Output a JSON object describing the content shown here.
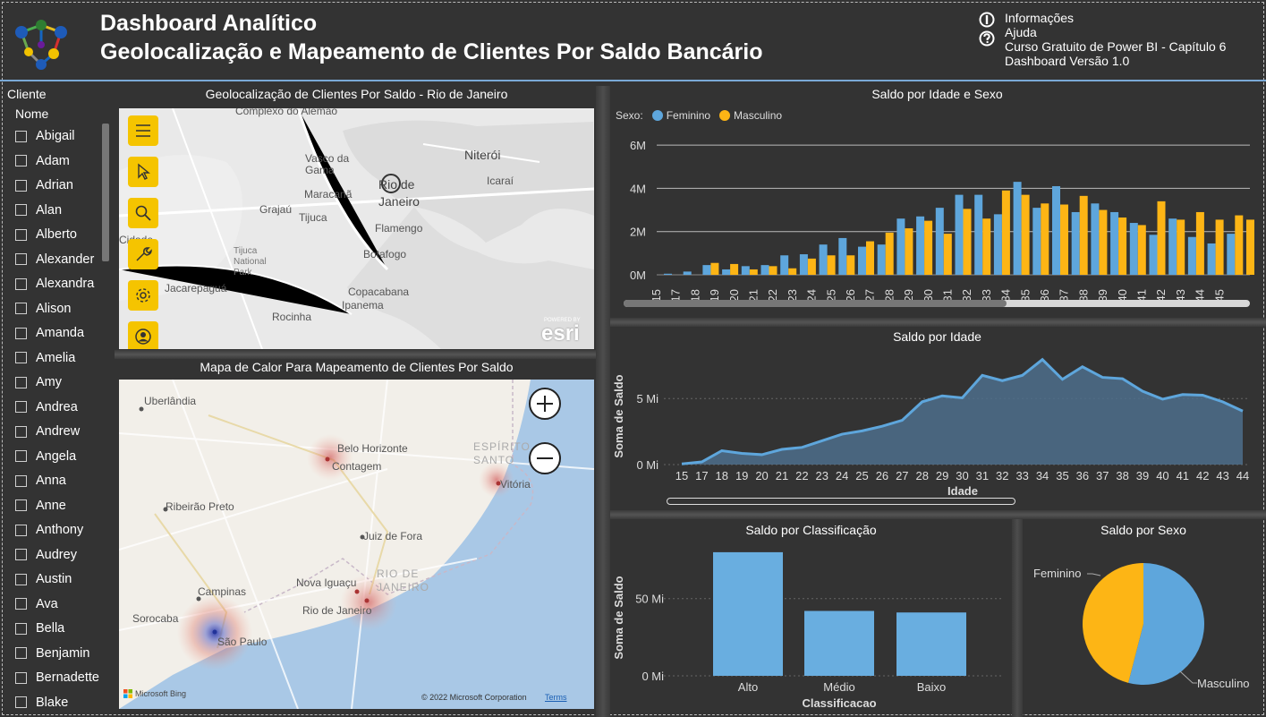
{
  "header": {
    "title_line1": "Dashboard Analítico",
    "title_line2": "Geolocalização e Mapeamento de Clientes Por Saldo Bancário",
    "links": [
      "Informações",
      "Ajuda",
      "Curso Gratuito de Power BI - Capítulo 6",
      "Dashboard Versão 1.0"
    ],
    "logo_icon": "molecule-logo-icon"
  },
  "slicer": {
    "title": "Cliente",
    "field": "Nome",
    "items": [
      "Abigail",
      "Adam",
      "Adrian",
      "Alan",
      "Alberto",
      "Alexander",
      "Alexandra",
      "Alison",
      "Amanda",
      "Amelia",
      "Amy",
      "Andrea",
      "Andrew",
      "Angela",
      "Anna",
      "Anne",
      "Anthony",
      "Audrey",
      "Austin",
      "Ava",
      "Bella",
      "Benjamin",
      "Bernadette",
      "Blake"
    ]
  },
  "map_rio": {
    "title": "Geolocalização de Clientes Por Saldo - Rio de Janeiro",
    "labels": [
      "Complexo do Alemão",
      "Vasco da Gama",
      "Niterói",
      "Icaraí",
      "Rio de Janeiro",
      "Maracanã",
      "Grajaú",
      "Tijuca",
      "Flamengo",
      "Tijuca National Park",
      "Botafogo",
      "Jacarepaguá",
      "Copacabana",
      "Ipanema",
      "Rocinha",
      "Cidade"
    ],
    "attribution": "esri",
    "attribution_small": "POWERED BY",
    "tools": [
      "menu-icon",
      "select-arrow-icon",
      "search-icon",
      "wrench-icon",
      "gear-icon",
      "user-icon"
    ]
  },
  "map_heat": {
    "title": "Mapa de Calor Para Mapeamento de Clientes Por Saldo",
    "cities": [
      "Uberlândia",
      "Belo Horizonte",
      "Contagem",
      "ESPÍRITO SANTO",
      "Vitória",
      "Ribeirão Preto",
      "Juiz de Fora",
      "RIO DE JANEIRO",
      "Nova Iguaçu",
      "Rio de Janeiro",
      "Campinas",
      "Sorocaba",
      "São Paulo"
    ],
    "credit_left": "Microsoft Bing",
    "credit_right": "© 2022 Microsoft Corporation",
    "terms": "Terms"
  },
  "chart_sex_age": {
    "title": "Saldo por Idade e Sexo",
    "legend_label": "Sexo:",
    "colors": {
      "Feminino": "#5ea6dc",
      "Masculino": "#fdb515"
    },
    "chart_data": {
      "type": "bar",
      "categories": [
        "15",
        "17",
        "18",
        "19",
        "20",
        "21",
        "22",
        "23",
        "24",
        "25",
        "26",
        "27",
        "28",
        "29",
        "30",
        "31",
        "32",
        "33",
        "34",
        "35",
        "36",
        "37",
        "38",
        "39",
        "40",
        "41",
        "42",
        "43",
        "44",
        "45"
      ],
      "series": [
        {
          "name": "Feminino",
          "values": [
            0.05,
            0.15,
            0.45,
            0.25,
            0.4,
            0.45,
            0.9,
            0.95,
            1.4,
            1.7,
            1.3,
            1.4,
            2.6,
            2.7,
            3.1,
            3.7,
            3.7,
            2.8,
            4.3,
            3.1,
            4.1,
            2.9,
            3.3,
            2.9,
            2.4,
            1.85,
            2.6,
            1.75,
            1.45,
            1.9
          ]
        },
        {
          "name": "Masculino",
          "values": [
            0,
            0,
            0.55,
            0.5,
            0.25,
            0.4,
            0.3,
            0.75,
            0.9,
            0.9,
            1.55,
            1.95,
            2.15,
            2.5,
            1.9,
            3.05,
            2.6,
            3.9,
            3.7,
            3.3,
            3.25,
            3.65,
            3.0,
            2.65,
            2.3,
            3.4,
            2.55,
            2.9,
            2.55,
            2.75
          ]
        }
      ],
      "extra_masculino_after_45": 2.55,
      "y_ticks": [
        "0M",
        "2M",
        "4M",
        "6M"
      ],
      "ylim": [
        0,
        6.5
      ],
      "grid": true,
      "legend": "top-left"
    }
  },
  "chart_age": {
    "title": "Saldo por Idade",
    "chart_data": {
      "type": "area",
      "x": [
        "15",
        "17",
        "18",
        "19",
        "20",
        "21",
        "22",
        "23",
        "24",
        "25",
        "26",
        "27",
        "28",
        "29",
        "30",
        "31",
        "32",
        "33",
        "34",
        "35",
        "36",
        "37",
        "38",
        "39",
        "40",
        "41",
        "42",
        "43",
        "44"
      ],
      "values": [
        0.05,
        0.2,
        1.05,
        0.85,
        0.75,
        1.15,
        1.3,
        1.8,
        2.3,
        2.55,
        2.9,
        3.35,
        4.75,
        5.2,
        5.05,
        6.75,
        6.35,
        6.75,
        7.95,
        6.45,
        7.4,
        6.6,
        6.5,
        5.55,
        4.95,
        5.3,
        5.25,
        4.75,
        4.05
      ],
      "xlabel": "Idade",
      "ylabel": "Soma de Saldo",
      "y_ticks": [
        "0 Mi",
        "5 Mi"
      ],
      "ylim": [
        0,
        8.4
      ],
      "color": "#5ea6dc"
    }
  },
  "chart_class": {
    "title": "Saldo por Classificação",
    "chart_data": {
      "type": "bar",
      "categories": [
        "Alto",
        "Médio",
        "Baixo"
      ],
      "values": [
        80,
        42,
        41
      ],
      "xlabel": "Classificacao",
      "ylabel": "Soma de Saldo",
      "y_ticks": [
        "0 Mi",
        "50 Mi"
      ],
      "ylim": [
        0,
        84
      ],
      "color": "#69aee0"
    }
  },
  "chart_sex": {
    "title": "Saldo por Sexo",
    "chart_data": {
      "type": "pie",
      "labels": [
        "Masculino",
        "Feminino"
      ],
      "values": [
        54,
        46
      ],
      "colors": [
        "#5ea6dc",
        "#fdb515"
      ]
    }
  }
}
